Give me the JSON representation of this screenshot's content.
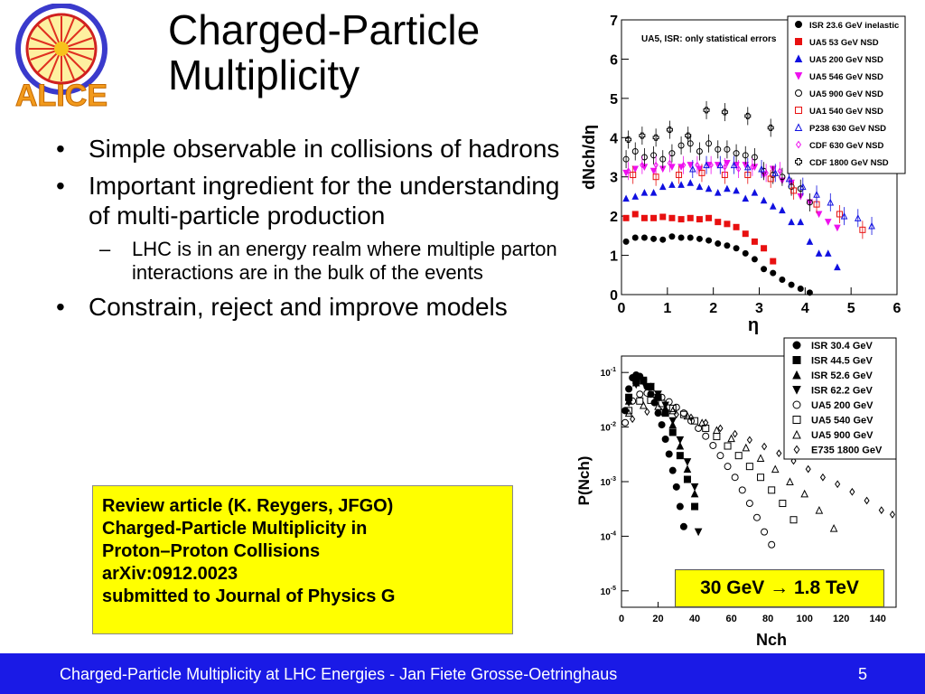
{
  "slide": {
    "title_lines": [
      "Charged-Particle",
      "Multiplicity"
    ],
    "logo_text": "ALICE",
    "bullets": [
      {
        "text": "Simple observable in collisions of hadrons"
      },
      {
        "text": "Important ingredient for the understanding of multi-particle production",
        "sub": [
          "LHC is in an energy realm where multiple parton interactions are in the bulk of the events"
        ]
      },
      {
        "text": "Constrain, reject and improve models"
      }
    ],
    "review_box": {
      "lines": [
        "Review article (K. Reygers, JFGO)",
        "Charged-Particle Multiplicity in",
        "Proton–Proton Collisions",
        "arXiv:0912.0023",
        "submitted to Journal of Physics G"
      ]
    },
    "footer": {
      "text": "Charged-Particle Multiplicity at LHC Energies - Jan Fiete Grosse-Oetringhaus",
      "page": "5"
    },
    "colors": {
      "footer_bg": "#1a1ae6",
      "highlight": "#ffff00",
      "red": "#e81010",
      "blue": "#1010e0",
      "magenta": "#ee10ee"
    }
  },
  "chart_data": [
    {
      "type": "scatter",
      "annotation": "UA5, ISR: only statistical errors",
      "xlabel": "η",
      "ylabel": "dNch/dη",
      "xlim": [
        0,
        6
      ],
      "ylim": [
        0,
        7
      ],
      "xticks": [
        "0",
        "1",
        "2",
        "3",
        "4",
        "5",
        "6"
      ],
      "yticks": [
        "0",
        "1",
        "2",
        "3",
        "4",
        "5",
        "6",
        "7"
      ],
      "legend_position": "top-right",
      "series": [
        {
          "name": "ISR 23.6 GeV inelastic",
          "marker": "circle-filled",
          "color": "#000000",
          "x": [
            0.1,
            0.3,
            0.5,
            0.7,
            0.9,
            1.1,
            1.3,
            1.5,
            1.7,
            1.9,
            2.1,
            2.3,
            2.5,
            2.7,
            2.9,
            3.1,
            3.3,
            3.5,
            3.7,
            3.9,
            4.1
          ],
          "y": [
            1.35,
            1.45,
            1.45,
            1.42,
            1.4,
            1.48,
            1.45,
            1.45,
            1.42,
            1.38,
            1.3,
            1.25,
            1.18,
            1.05,
            0.9,
            0.65,
            0.55,
            0.38,
            0.25,
            0.15,
            0.05
          ]
        },
        {
          "name": "UA5 53 GeV NSD",
          "marker": "square-filled",
          "color": "#e81010",
          "x": [
            0.1,
            0.3,
            0.5,
            0.7,
            0.9,
            1.1,
            1.3,
            1.5,
            1.7,
            1.9,
            2.1,
            2.3,
            2.5,
            2.7,
            2.9,
            3.1,
            3.3
          ],
          "y": [
            1.95,
            2.05,
            1.95,
            1.95,
            1.98,
            1.95,
            1.92,
            1.95,
            1.92,
            1.95,
            1.85,
            1.8,
            1.72,
            1.55,
            1.35,
            1.18,
            0.85
          ]
        },
        {
          "name": "UA5 200 GeV NSD",
          "marker": "triangle-up-filled",
          "color": "#1010e0",
          "x": [
            0.1,
            0.3,
            0.5,
            0.7,
            0.9,
            1.1,
            1.3,
            1.5,
            1.7,
            1.9,
            2.1,
            2.3,
            2.5,
            2.7,
            2.9,
            3.1,
            3.3,
            3.5,
            3.7,
            3.9,
            4.1,
            4.3,
            4.5,
            4.7
          ],
          "y": [
            2.45,
            2.5,
            2.6,
            2.6,
            2.75,
            2.8,
            2.8,
            2.85,
            2.75,
            2.7,
            2.6,
            2.7,
            2.65,
            2.45,
            2.6,
            2.4,
            2.25,
            2.15,
            1.85,
            1.85,
            1.35,
            1.05,
            1.05,
            0.7
          ]
        },
        {
          "name": "UA5 546 GeV NSD",
          "marker": "triangle-down-filled",
          "color": "#ee10ee",
          "x": [
            0.1,
            0.3,
            0.5,
            0.7,
            0.9,
            1.1,
            1.3,
            1.5,
            1.7,
            1.9,
            2.1,
            2.3,
            2.5,
            2.7,
            2.9,
            3.1,
            3.3,
            3.5,
            3.7,
            3.9,
            4.1,
            4.3,
            4.5,
            4.7
          ],
          "y": [
            3.1,
            3.2,
            3.25,
            3.15,
            3.2,
            3.25,
            3.25,
            3.3,
            3.2,
            3.3,
            3.3,
            3.35,
            3.3,
            3.3,
            3.25,
            3.05,
            3.2,
            2.9,
            2.85,
            2.5,
            2.35,
            2.05,
            1.85,
            1.7
          ]
        },
        {
          "name": "UA5 900 GeV NSD",
          "marker": "circle-open",
          "color": "#000000",
          "x": [
            0.1,
            0.3,
            0.5,
            0.7,
            0.9,
            1.1,
            1.3,
            1.5,
            1.7,
            1.9,
            2.1,
            2.3,
            2.5,
            2.7,
            2.9,
            3.1,
            3.3,
            3.5,
            3.7,
            3.9,
            4.1
          ],
          "y": [
            3.45,
            3.65,
            3.5,
            3.55,
            3.45,
            3.6,
            3.8,
            3.85,
            3.65,
            3.85,
            3.7,
            3.7,
            3.6,
            3.55,
            3.5,
            3.15,
            3.05,
            3.0,
            2.75,
            2.7,
            2.35
          ]
        },
        {
          "name": "UA1 540 GeV NSD",
          "marker": "square-open",
          "color": "#e81010",
          "x": [
            0.25,
            0.75,
            1.25,
            1.75,
            2.25,
            2.75,
            3.25,
            3.75,
            4.25,
            4.75,
            5.25
          ],
          "y": [
            3.05,
            3.0,
            3.05,
            3.1,
            3.05,
            3.05,
            2.95,
            2.65,
            2.3,
            2.05,
            1.65
          ]
        },
        {
          "name": "P238 630 GeV NSD",
          "marker": "triangle-up-open",
          "color": "#1010e0",
          "x": [
            1.55,
            1.85,
            2.15,
            2.45,
            2.75,
            3.05,
            3.35,
            3.65,
            3.95,
            4.25,
            4.55,
            4.85,
            5.15,
            5.45
          ],
          "y": [
            3.2,
            3.3,
            3.3,
            3.3,
            3.25,
            3.2,
            3.1,
            2.95,
            2.75,
            2.55,
            2.35,
            2.0,
            1.95,
            1.75
          ]
        },
        {
          "name": "CDF 630 GeV NSD",
          "marker": "diamond-open",
          "color": "#ee10ee",
          "x": [
            0.15,
            0.45,
            0.75,
            1.05,
            1.35,
            1.65,
            1.95,
            2.25,
            2.55,
            2.85,
            3.15,
            3.45
          ],
          "y": [
            3.15,
            3.3,
            3.3,
            3.35,
            3.3,
            3.3,
            3.3,
            3.25,
            3.2,
            3.25,
            3.1,
            3.15
          ]
        },
        {
          "name": "CDF 1800 GeV NSD",
          "marker": "cross-open",
          "color": "#000000",
          "x": [
            0.15,
            0.45,
            0.75,
            1.05,
            1.45,
            1.85,
            2.25,
            2.75,
            3.25
          ],
          "y": [
            3.95,
            4.05,
            4.0,
            4.2,
            4.05,
            4.7,
            4.65,
            4.55,
            4.25
          ]
        }
      ]
    },
    {
      "type": "scatter",
      "xlabel": "Nch",
      "ylabel": "P(Nch)",
      "xlim": [
        0,
        150
      ],
      "ylim": [
        5e-06,
        0.2
      ],
      "yscale": "log",
      "xticks": [
        "0",
        "20",
        "40",
        "60",
        "80",
        "100",
        "120",
        "140"
      ],
      "yticks": [
        "10^-1",
        "10^-2",
        "10^-3",
        "10^-4",
        "10^-5"
      ],
      "legend_position": "top-right",
      "annotation": "30 GeV → 1.8 TeV",
      "series": [
        {
          "name": "ISR 30.4 GeV",
          "marker": "circle-filled",
          "color": "#000000",
          "x": [
            2,
            4,
            6,
            8,
            10,
            12,
            14,
            16,
            18,
            20,
            22,
            24,
            26,
            28,
            30,
            32,
            34
          ],
          "y": [
            0.02,
            0.05,
            0.08,
            0.09,
            0.085,
            0.07,
            0.055,
            0.04,
            0.028,
            0.018,
            0.011,
            0.006,
            0.0032,
            0.0016,
            0.0008,
            0.00035,
            0.00015
          ]
        },
        {
          "name": "ISR 44.5 GeV",
          "marker": "square-filled",
          "color": "#000000",
          "x": [
            4,
            8,
            12,
            16,
            20,
            24,
            28,
            32,
            36,
            40
          ],
          "y": [
            0.035,
            0.07,
            0.072,
            0.055,
            0.035,
            0.018,
            0.008,
            0.003,
            0.0011,
            0.00035
          ]
        },
        {
          "name": "ISR 52.6 GeV",
          "marker": "triangle-up-filled",
          "color": "#000000",
          "x": [
            4,
            8,
            12,
            16,
            20,
            24,
            28,
            32,
            36,
            40
          ],
          "y": [
            0.03,
            0.065,
            0.07,
            0.055,
            0.038,
            0.022,
            0.011,
            0.0045,
            0.0017,
            0.0006
          ]
        },
        {
          "name": "ISR 62.2 GeV",
          "marker": "triangle-down-filled",
          "color": "#000000",
          "x": [
            4,
            8,
            12,
            16,
            20,
            24,
            28,
            32,
            36,
            40,
            42
          ],
          "y": [
            0.028,
            0.06,
            0.066,
            0.055,
            0.04,
            0.025,
            0.013,
            0.0058,
            0.0023,
            0.0008,
            0.00012
          ]
        },
        {
          "name": "UA5 200 GeV",
          "marker": "circle-open",
          "color": "#000000",
          "x": [
            2,
            6,
            10,
            14,
            18,
            22,
            26,
            30,
            34,
            38,
            42,
            46,
            50,
            54,
            58,
            62,
            66,
            70,
            74,
            78,
            82
          ],
          "y": [
            0.012,
            0.03,
            0.04,
            0.042,
            0.04,
            0.035,
            0.029,
            0.023,
            0.018,
            0.013,
            0.0095,
            0.0068,
            0.0046,
            0.003,
            0.0019,
            0.0012,
            0.0007,
            0.0004,
            0.00022,
            0.00012,
            7e-05
          ]
        },
        {
          "name": "UA5 540 GeV",
          "marker": "square-open",
          "color": "#000000",
          "x": [
            4,
            10,
            16,
            22,
            28,
            34,
            40,
            46,
            52,
            58,
            64,
            70,
            76,
            82,
            88,
            94
          ],
          "y": [
            0.02,
            0.03,
            0.031,
            0.027,
            0.022,
            0.017,
            0.013,
            0.0095,
            0.0067,
            0.0045,
            0.003,
            0.0019,
            0.0012,
            0.0007,
            0.0004,
            0.0002
          ]
        },
        {
          "name": "UA5 900 GeV",
          "marker": "triangle-up-open",
          "color": "#000000",
          "x": [
            4,
            12,
            20,
            28,
            36,
            44,
            52,
            60,
            68,
            76,
            84,
            92,
            100,
            108,
            116
          ],
          "y": [
            0.018,
            0.025,
            0.024,
            0.02,
            0.016,
            0.012,
            0.0088,
            0.0062,
            0.0042,
            0.0027,
            0.0017,
            0.001,
            0.0006,
            0.0003,
            0.00014
          ]
        },
        {
          "name": "E735 1800 GeV",
          "marker": "diamond-open",
          "color": "#000000",
          "x": [
            6,
            14,
            22,
            30,
            38,
            46,
            54,
            62,
            70,
            78,
            86,
            94,
            102,
            110,
            118,
            126,
            134,
            142,
            148
          ],
          "y": [
            0.014,
            0.019,
            0.019,
            0.017,
            0.015,
            0.012,
            0.0095,
            0.0075,
            0.0058,
            0.0044,
            0.0033,
            0.0024,
            0.0017,
            0.0012,
            0.0009,
            0.00065,
            0.00045,
            0.0003,
            0.00025
          ]
        }
      ]
    }
  ]
}
